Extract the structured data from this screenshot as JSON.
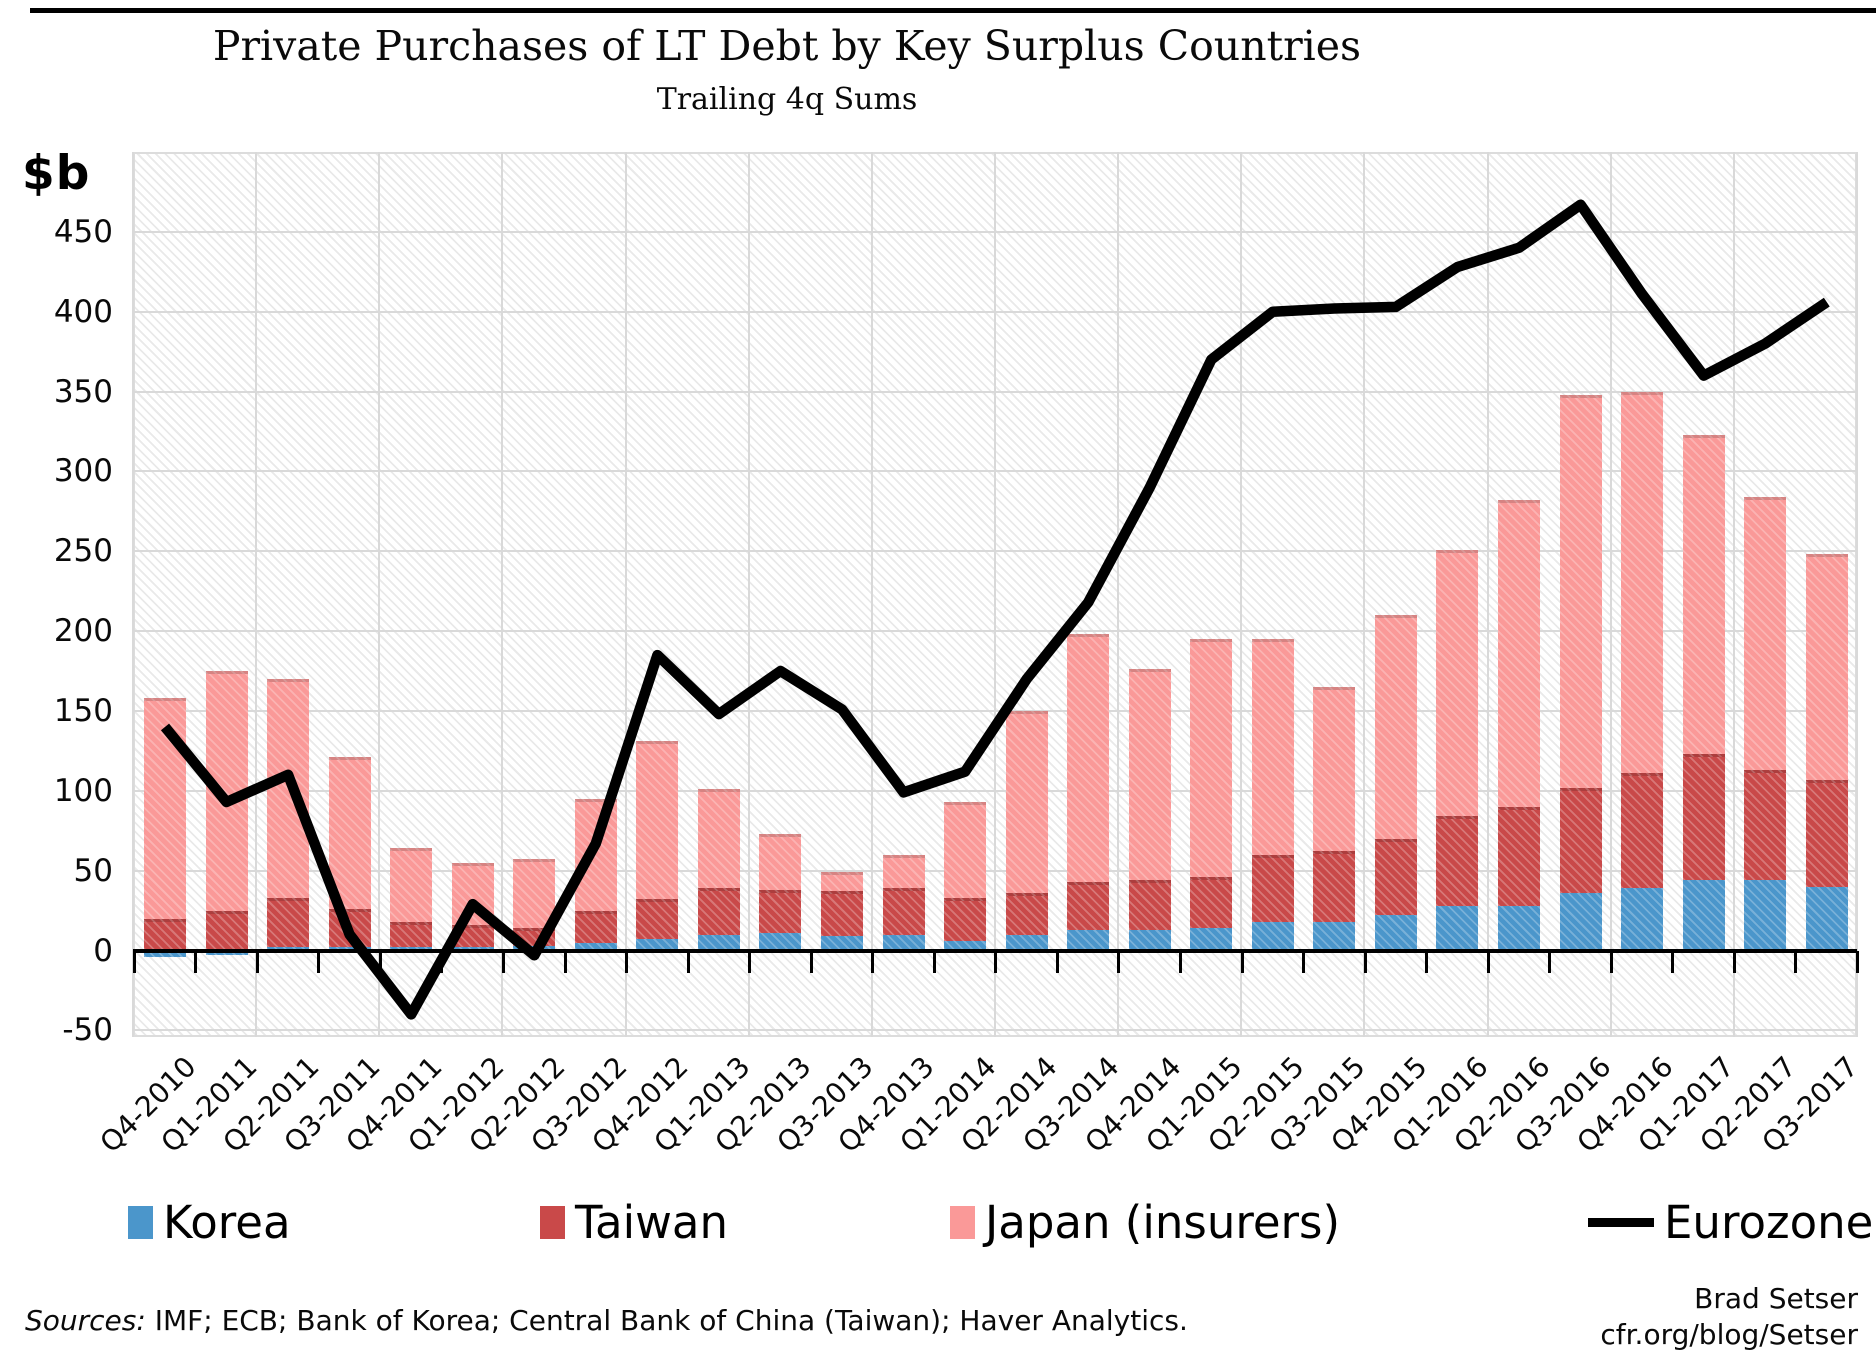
{
  "header": {
    "title": "Private Purchases of LT Debt by Key Surplus Countries",
    "subtitle": "Trailing 4q Sums"
  },
  "y_axis": {
    "unit_label": "$b",
    "ticks": [
      450,
      400,
      350,
      300,
      250,
      200,
      150,
      100,
      50,
      0,
      -50
    ]
  },
  "legend": [
    {
      "label": "Korea",
      "color": "#4B96CB",
      "marker": "square"
    },
    {
      "label": "Taiwan",
      "color": "#C94949",
      "marker": "square"
    },
    {
      "label": "Japan (insurers)",
      "color": "#FA9998",
      "marker": "square"
    },
    {
      "label": "Eurozone",
      "color": "#000000",
      "marker": "line"
    }
  ],
  "footer": {
    "sources_prefix": "Sources:",
    "sources_text": " IMF; ECB; Bank of Korea; Central Bank of China (Taiwan); Haver Analytics.",
    "credit_line1": "Brad Setser",
    "credit_line2": "cfr.org/blog/Setser"
  },
  "chart_data": {
    "type": "bar",
    "subtype": "stacked-bars-with-line-overlay",
    "title": "Private Purchases of LT Debt by Key Surplus Countries",
    "subtitle": "Trailing 4q Sums",
    "ylabel": "$b",
    "ylim": [
      -50,
      500
    ],
    "y_gridline_step": 50,
    "grid": true,
    "legend_position": "bottom",
    "categories": [
      "Q4-2010",
      "Q1-2011",
      "Q2-2011",
      "Q3-2011",
      "Q4-2011",
      "Q1-2012",
      "Q2-2012",
      "Q3-2012",
      "Q4-2012",
      "Q1-2013",
      "Q2-2013",
      "Q3-2013",
      "Q4-2013",
      "Q1-2014",
      "Q2-2014",
      "Q3-2014",
      "Q4-2014",
      "Q1-2015",
      "Q2-2015",
      "Q3-2015",
      "Q4-2015",
      "Q1-2016",
      "Q2-2016",
      "Q3-2016",
      "Q4-2016",
      "Q1-2017",
      "Q2-2017",
      "Q3-2017"
    ],
    "series": [
      {
        "name": "Korea",
        "type": "bar",
        "color": "#4B96CB",
        "values": [
          -4,
          -3,
          2,
          2,
          2,
          2,
          3,
          5,
          7,
          10,
          11,
          9,
          10,
          6,
          10,
          13,
          13,
          14,
          18,
          18,
          22,
          28,
          28,
          36,
          39,
          44,
          44,
          40
        ]
      },
      {
        "name": "Taiwan",
        "type": "bar",
        "color": "#C94949",
        "values": [
          20,
          25,
          31,
          24,
          16,
          14,
          11,
          20,
          25,
          29,
          27,
          28,
          29,
          27,
          26,
          30,
          31,
          32,
          42,
          44,
          48,
          56,
          62,
          66,
          72,
          79,
          69,
          67
        ]
      },
      {
        "name": "Japan (insurers)",
        "type": "bar",
        "color": "#FA9998",
        "values": [
          138,
          150,
          137,
          95,
          46,
          39,
          43,
          70,
          99,
          62,
          35,
          12,
          21,
          60,
          114,
          155,
          132,
          149,
          135,
          103,
          140,
          167,
          192,
          246,
          239,
          200,
          171,
          141
        ]
      },
      {
        "name": "Eurozone",
        "type": "line",
        "color": "#000000",
        "values": [
          140,
          93,
          110,
          10,
          -40,
          29,
          -3,
          67,
          185,
          148,
          175,
          151,
          99,
          112,
          170,
          218,
          290,
          370,
          400,
          402,
          403,
          428,
          440,
          467,
          411,
          360,
          380,
          406
        ]
      }
    ]
  }
}
